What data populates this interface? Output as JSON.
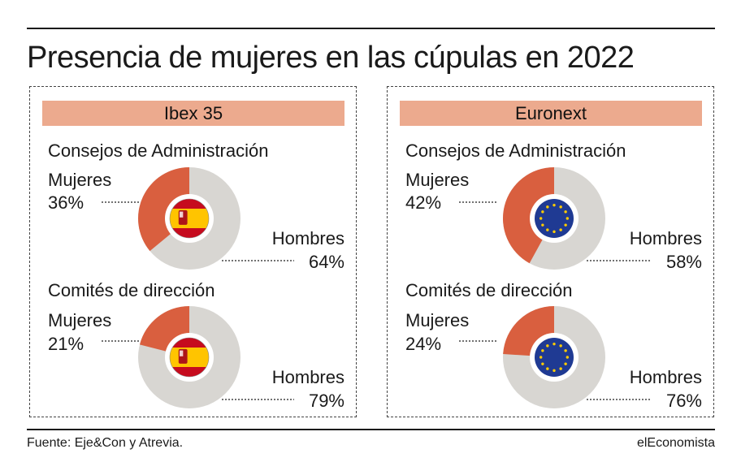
{
  "title": "Presencia de mujeres en las cúpulas en 2022",
  "source": "Fuente: Eje&Con y Atrevia.",
  "brand": "elEconomista",
  "colors": {
    "women": "#d95f3f",
    "men": "#d8d6d2",
    "header_bg": "#ecaa8e"
  },
  "chart_data": [
    {
      "type": "pie",
      "panel": "Ibex 35",
      "title": "Consejos de Administración",
      "flag_icon": "spain-flag-icon",
      "categories": [
        "Mujeres",
        "Hombres"
      ],
      "values": [
        36,
        64
      ],
      "labels": [
        "36%",
        "64%"
      ]
    },
    {
      "type": "pie",
      "panel": "Ibex 35",
      "title": "Comités de dirección",
      "flag_icon": "spain-flag-icon",
      "categories": [
        "Mujeres",
        "Hombres"
      ],
      "values": [
        21,
        79
      ],
      "labels": [
        "21%",
        "79%"
      ]
    },
    {
      "type": "pie",
      "panel": "Euronext",
      "title": "Consejos de Administración",
      "flag_icon": "eu-flag-icon",
      "categories": [
        "Mujeres",
        "Hombres"
      ],
      "values": [
        42,
        58
      ],
      "labels": [
        "42%",
        "58%"
      ]
    },
    {
      "type": "pie",
      "panel": "Euronext",
      "title": "Comités de dirección",
      "flag_icon": "eu-flag-icon",
      "categories": [
        "Mujeres",
        "Hombres"
      ],
      "values": [
        24,
        76
      ],
      "labels": [
        "24%",
        "76%"
      ]
    }
  ]
}
